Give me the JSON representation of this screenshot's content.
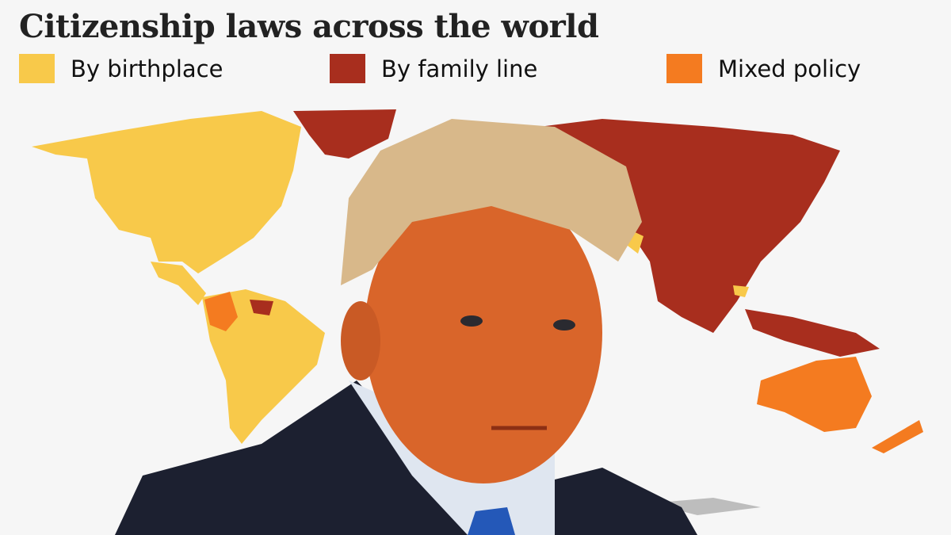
{
  "title": "Citizenship laws across the world",
  "legend": [
    {
      "label": "By birthplace",
      "color": "#f8c94a"
    },
    {
      "label": "By family line",
      "color": "#a82e1e"
    },
    {
      "label": "Mixed policy",
      "color": "#f47b20"
    }
  ],
  "no_data_color": "#bdbdbd",
  "photo": "portrait-of-man-in-suit"
}
